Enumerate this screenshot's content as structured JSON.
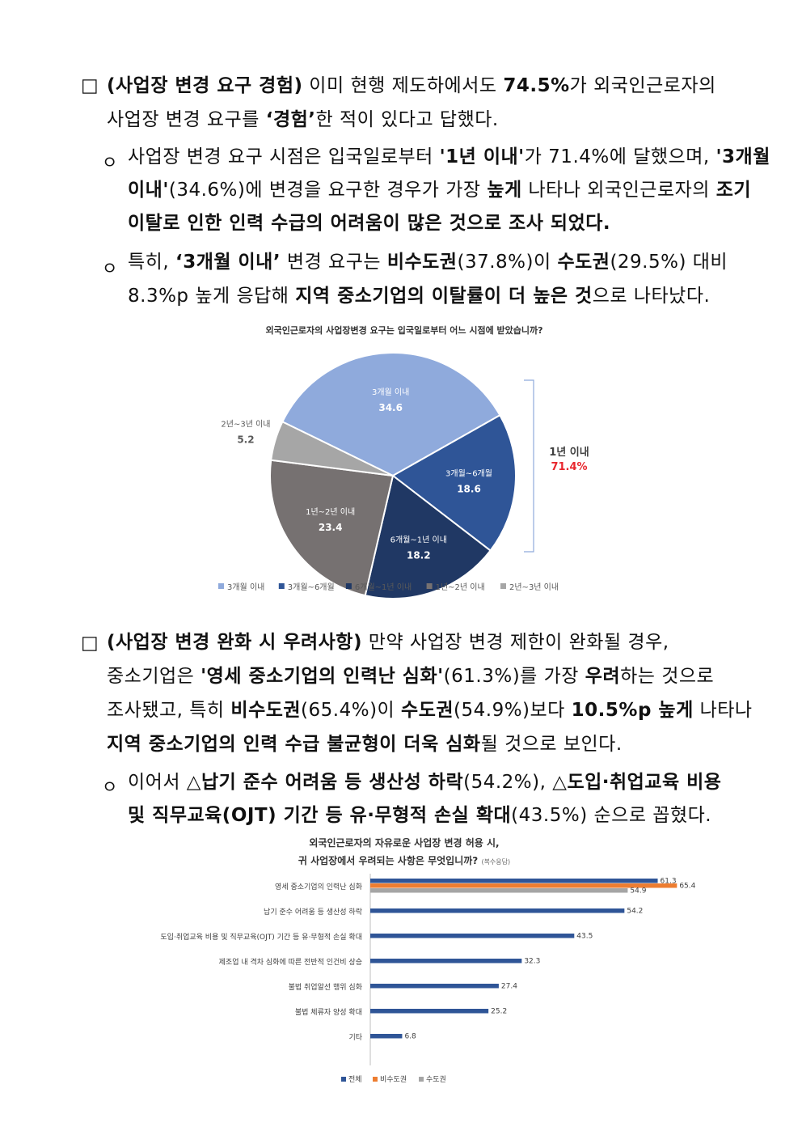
{
  "section1": {
    "bullet": "□",
    "line1": [
      {
        "t": "(사업장 변경 요구 경험)",
        "b": true
      },
      {
        "t": " 이미 현행 제도하에서도 ",
        "b": false
      },
      {
        "t": "74.5%",
        "b": true
      },
      {
        "t": "가 외국인근로자의",
        "b": false
      }
    ],
    "line2": [
      {
        "t": "사업장 변경 요구를 ",
        "b": false
      },
      {
        "t": "‘경험’",
        "b": true
      },
      {
        "t": "한 적이 있다고 답했다.",
        "b": false
      }
    ],
    "sub1": {
      "bullet": "ㅇ",
      "line1": [
        {
          "t": "사업장 변경 요구 시점은 입국일로부터 ",
          "b": false
        },
        {
          "t": "'1년 이내'",
          "b": true
        },
        {
          "t": "가 71.4%에 달했으며, ",
          "b": false
        },
        {
          "t": "'3개월",
          "b": true
        }
      ],
      "line2": [
        {
          "t": "이내'",
          "b": true
        },
        {
          "t": "(34.6%)에 변경을 요구한 경우가 가장 ",
          "b": false
        },
        {
          "t": "높게",
          "b": true
        },
        {
          "t": " 나타나 외국인근로자의 ",
          "b": false
        },
        {
          "t": "조기",
          "b": true
        }
      ],
      "line3": [
        {
          "t": "이탈로 인한 인력 수급의 어려움이 많은 것으로 조사 되었다.",
          "b": true
        }
      ]
    },
    "sub2": {
      "bullet": "ㅇ",
      "line1": [
        {
          "t": "특히, ",
          "b": false
        },
        {
          "t": "‘3개월 이내’",
          "b": true
        },
        {
          "t": " 변경 요구는 ",
          "b": false
        },
        {
          "t": "비수도권",
          "b": true
        },
        {
          "t": "(37.8%)이 ",
          "b": false
        },
        {
          "t": "수도권",
          "b": true
        },
        {
          "t": "(29.5%) 대비",
          "b": false
        }
      ],
      "line2": [
        {
          "t": "8.3%p 높게 응답해 ",
          "b": false
        },
        {
          "t": "지역 중소기업의 이탈률이 더 높은 것",
          "b": true
        },
        {
          "t": "으로 나타났다.",
          "b": false
        }
      ]
    }
  },
  "chart_data": [
    {
      "type": "pie",
      "title": "외국인근로자의 사업장변경 요구는 입국일로부터 어느 시점에 받았습니까?",
      "categories": [
        "3개월 이내",
        "3개월~6개월",
        "6개월~1년 이내",
        "1년~2년 이내",
        "2년~3년 이내"
      ],
      "values": [
        34.6,
        18.6,
        18.2,
        23.4,
        5.2
      ],
      "colors": [
        "#8faadc",
        "#2f5597",
        "#203864",
        "#767171",
        "#a6a6a6"
      ],
      "annotation": {
        "label": "1년 이내",
        "value": "71.4%",
        "color": "#e8262d"
      },
      "legend_position": "bottom"
    },
    {
      "type": "bar",
      "orientation": "horizontal",
      "title": [
        "외국인근로자의 자유로운 사업장 변경 허용 시,",
        "귀 사업장에서 우려되는 사항은 무엇입니까?"
      ],
      "title_note": "(복수응답)",
      "categories": [
        "영세 중소기업의 인력난 심화",
        "납기 준수 어려움 등 생산성 하락",
        "도입·취업교육 비용 및 직무교육(OJT) 기간 등 유·무형적 손실 확대",
        "제조업 내 격차 심화에 따른 전반적 인건비 상승",
        "불법 취업알선 행위 심화",
        "불법 체류자 양성 확대",
        "기타"
      ],
      "series": [
        {
          "name": "전체",
          "color": "#2f5597",
          "values": [
            61.3,
            54.2,
            43.5,
            32.3,
            27.4,
            25.2,
            6.8
          ]
        },
        {
          "name": "비수도권",
          "color": "#ed7d31",
          "values": [
            65.4,
            null,
            null,
            null,
            null,
            null,
            null
          ]
        },
        {
          "name": "수도권",
          "color": "#a5a5a5",
          "values": [
            54.9,
            null,
            null,
            null,
            null,
            null,
            null
          ]
        }
      ],
      "legend_position": "bottom"
    }
  ],
  "section2": {
    "bullet": "□",
    "line1": [
      {
        "t": "(사업장 변경 완화 시 우려사항)",
        "b": true
      },
      {
        "t": " 만약 사업장 변경 제한이 완화될 경우,",
        "b": false
      }
    ],
    "line2": [
      {
        "t": "중소기업은 ",
        "b": false
      },
      {
        "t": "'영세 중소기업의 인력난 심화'",
        "b": true
      },
      {
        "t": "(61.3%)를 가장 ",
        "b": false
      },
      {
        "t": "우려",
        "b": true
      },
      {
        "t": "하는 것으로",
        "b": false
      }
    ],
    "line3": [
      {
        "t": "조사됐고, 특히 ",
        "b": false
      },
      {
        "t": "비수도권",
        "b": true
      },
      {
        "t": "(65.4%)이 ",
        "b": false
      },
      {
        "t": "수도권",
        "b": true
      },
      {
        "t": "(54.9%)보다 ",
        "b": false
      },
      {
        "t": "10.5%p 높게",
        "b": true
      },
      {
        "t": " 나타나",
        "b": false
      }
    ],
    "line4": [
      {
        "t": "지역 중소기업의 인력 수급 불균형이 더욱 심화",
        "b": true
      },
      {
        "t": "될 것으로 보인다.",
        "b": false
      }
    ],
    "sub1": {
      "bullet": "ㅇ",
      "line1": [
        {
          "t": "이어서 ",
          "b": false
        },
        {
          "t": "△납기 준수 어려움 등 생산성 하락",
          "b": true
        },
        {
          "t": "(54.2%), ",
          "b": false
        },
        {
          "t": "△도입·취업교육 비용",
          "b": true
        }
      ],
      "line2": [
        {
          "t": "및 직무교육(OJT) 기간 등 유·무형적 손실 확대",
          "b": true
        },
        {
          "t": "(43.5%) 순으로 꼽혔다.",
          "b": false
        }
      ]
    }
  }
}
